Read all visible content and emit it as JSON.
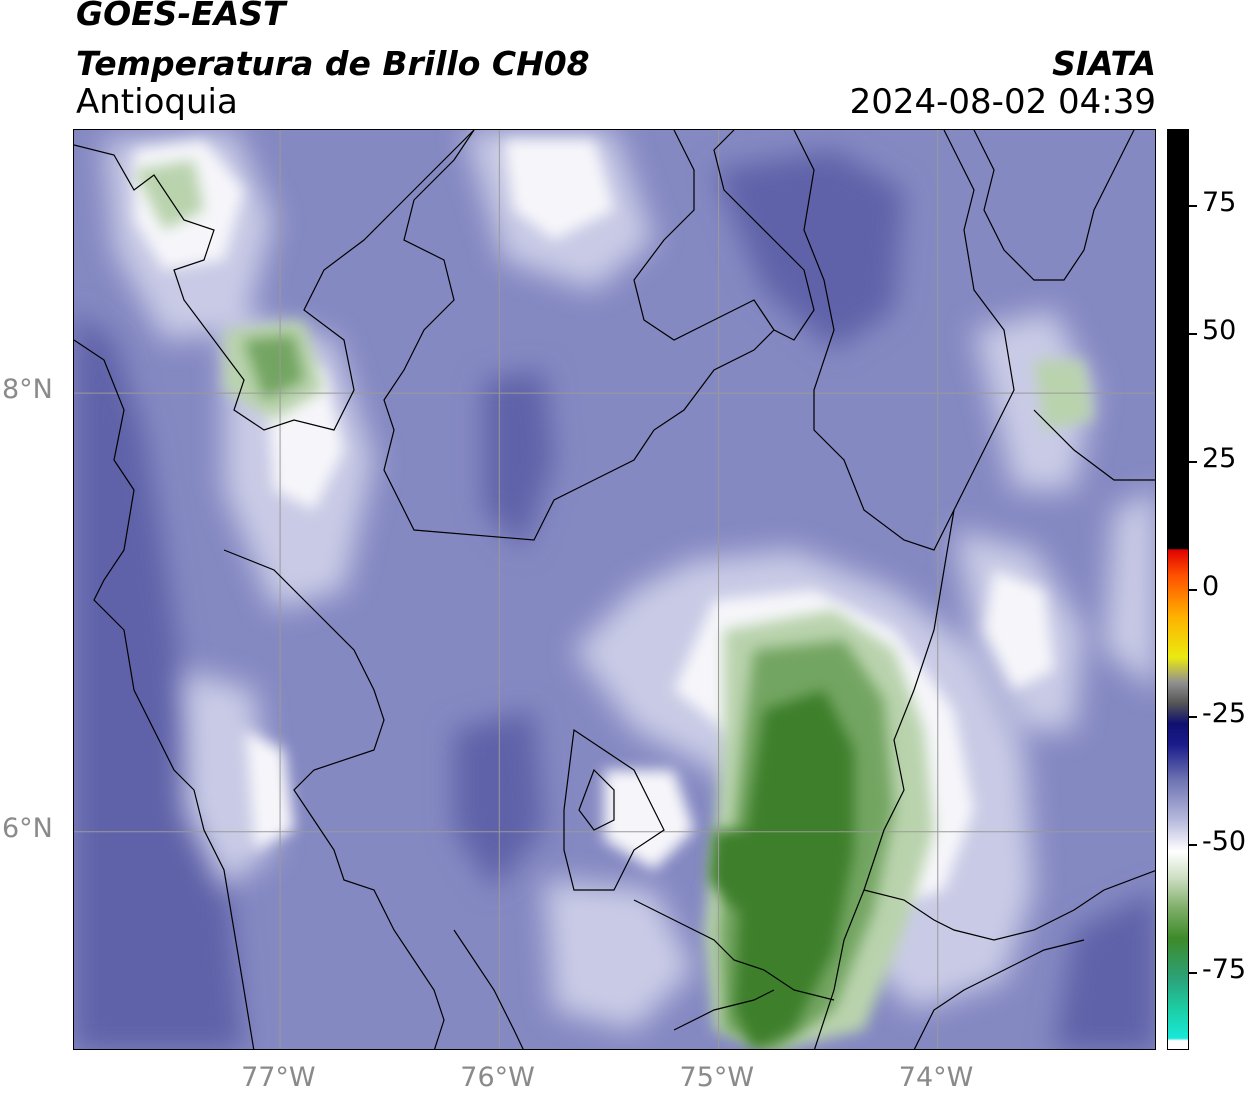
{
  "header": {
    "satellite": "GOES-EAST",
    "product": "Temperatura de Brillo CH08",
    "region": "Antioquia",
    "organization": "SIATA",
    "datetime": "2024-08-02 04:39"
  },
  "map": {
    "lon_range": [
      -77.94,
      -73.0
    ],
    "lat_range": [
      5.0,
      9.2
    ],
    "x_ticks": [
      {
        "lon": -77,
        "label": "77°W"
      },
      {
        "lon": -76,
        "label": "76°W"
      },
      {
        "lon": -75,
        "label": "75°W"
      },
      {
        "lon": -74,
        "label": "74°W"
      }
    ],
    "y_ticks": [
      {
        "lat": 8,
        "label": "8°N"
      },
      {
        "lat": 6,
        "label": "6°N"
      }
    ]
  },
  "colorbar": {
    "range": [
      -90,
      90
    ],
    "ticks": [
      {
        "value": 75,
        "label": "75"
      },
      {
        "value": 50,
        "label": "50"
      },
      {
        "value": 25,
        "label": "25"
      },
      {
        "value": 0,
        "label": "0"
      },
      {
        "value": -25,
        "label": "-25"
      },
      {
        "value": -50,
        "label": "-50"
      },
      {
        "value": -75,
        "label": "-75"
      }
    ],
    "stops": [
      {
        "value": -90,
        "color": "#ffffff"
      },
      {
        "value": -88,
        "color": "#ffffff"
      },
      {
        "value": -87.5,
        "color": "#18e8d8"
      },
      {
        "value": -82,
        "color": "#1ccfa6"
      },
      {
        "value": -76,
        "color": "#2ba37a"
      },
      {
        "value": -68,
        "color": "#3e8a2a"
      },
      {
        "value": -62,
        "color": "#7fae6a"
      },
      {
        "value": -56,
        "color": "#cfe0c4"
      },
      {
        "value": -51,
        "color": "#ffffff"
      },
      {
        "value": -45,
        "color": "#b8bbdd"
      },
      {
        "value": -37,
        "color": "#6e73b2"
      },
      {
        "value": -30,
        "color": "#1a1a8a"
      },
      {
        "value": -26,
        "color": "#101070"
      },
      {
        "value": -22,
        "color": "#555555"
      },
      {
        "value": -18,
        "color": "#909090"
      },
      {
        "value": -13,
        "color": "#eaea10"
      },
      {
        "value": -5,
        "color": "#ffb000"
      },
      {
        "value": 3,
        "color": "#ff5000"
      },
      {
        "value": 8,
        "color": "#e00000"
      },
      {
        "value": 8.1,
        "color": "#000000"
      },
      {
        "value": 90,
        "color": "#000000"
      }
    ]
  },
  "field_colors": {
    "base": "#8589c2",
    "dark": "#5e62a8",
    "light": "#c9cbe6",
    "white": "#f6f6fa",
    "green_light": "#b9d3ad",
    "green_mid": "#73a562",
    "green_dark": "#3e7f2c",
    "line": "#000000",
    "grid": "#9a9a9a"
  }
}
